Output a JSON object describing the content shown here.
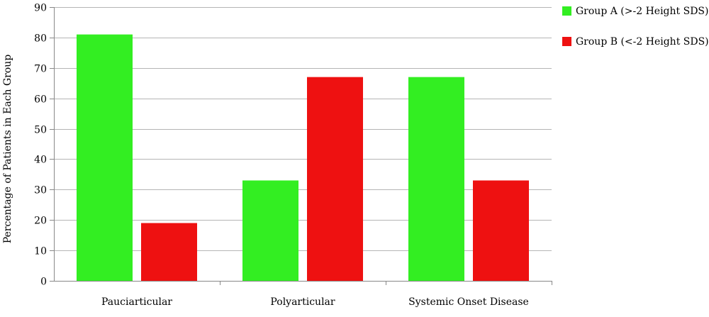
{
  "chart_data": {
    "type": "bar",
    "title": "",
    "xlabel": "",
    "ylabel": "Percentage of Patients in Each Group",
    "ylim": [
      0,
      90
    ],
    "yticks": [
      0,
      10,
      20,
      30,
      40,
      50,
      60,
      70,
      80,
      90
    ],
    "categories": [
      "Pauciarticular",
      "Polyarticular",
      "Systemic Onset Disease"
    ],
    "series": [
      {
        "name": "Group A (>-2 Height SDS)",
        "color": "#33ee22",
        "values": [
          81,
          33,
          67
        ]
      },
      {
        "name": "Group B (<-2 Height SDS)",
        "color": "#ee1111",
        "values": [
          19,
          67,
          33
        ]
      }
    ],
    "grid": true,
    "legend_position": "top-right"
  }
}
